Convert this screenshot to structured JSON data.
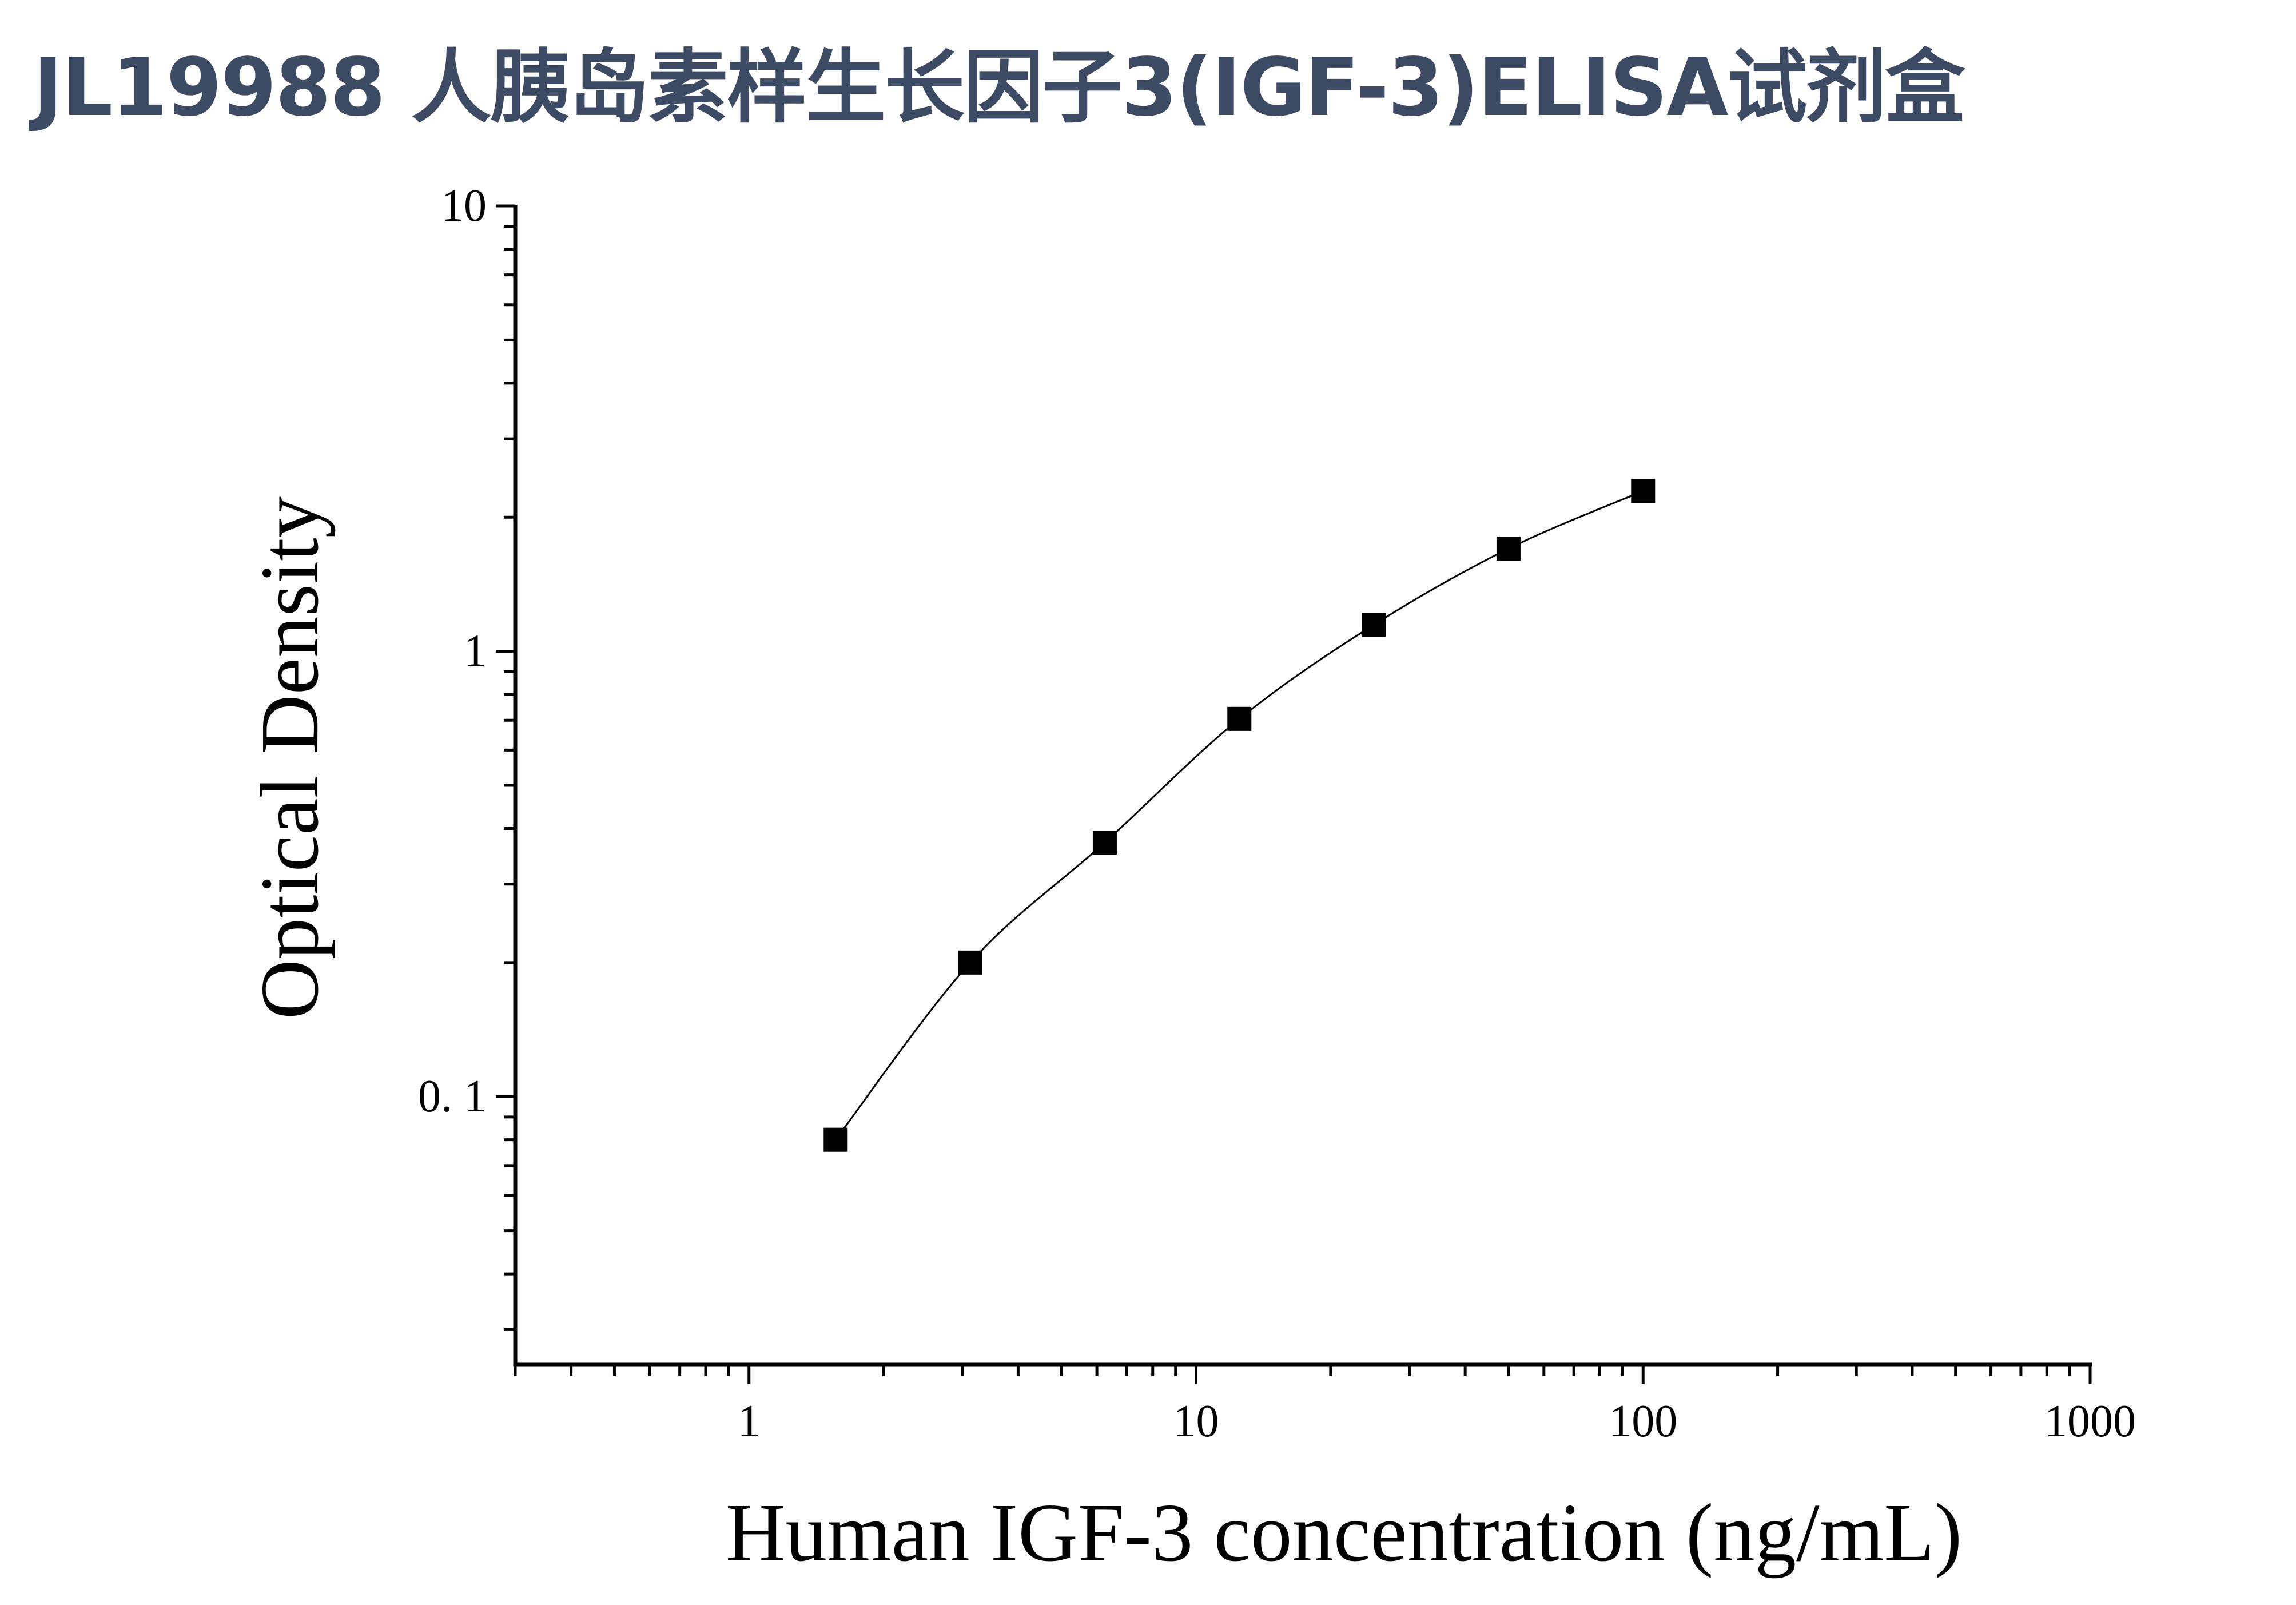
{
  "title": "JL19988 人胰岛素样生长因子3(IGF-3)ELISA试剂盒",
  "chart_data": {
    "type": "scatter",
    "title": "JL19988 人胰岛素样生长因子3(IGF-3)ELISA试剂盒",
    "xlabel": "Human IGF-3 concentration (ng/mL)",
    "ylabel": "Optical Density",
    "xscale": "log",
    "yscale": "log",
    "xlim": [
      0.3,
      1000
    ],
    "ylim": [
      0.025,
      10
    ],
    "xticks": [
      {
        "v": 1,
        "label": "1"
      },
      {
        "v": 10,
        "label": "10"
      },
      {
        "v": 100,
        "label": "100"
      },
      {
        "v": 1000,
        "label": "1000"
      }
    ],
    "yticks": [
      {
        "v": 0.1,
        "label": "0. 1"
      },
      {
        "v": 1,
        "label": "1"
      },
      {
        "v": 10,
        "label": "10"
      }
    ],
    "grid": false,
    "marker": "square",
    "fit_curve": true,
    "color": "#000000",
    "series": [
      {
        "x": [
          1.5625,
          3.125,
          6.25,
          12.5,
          25,
          50,
          100
        ],
        "y": [
          0.08,
          0.2,
          0.372,
          0.705,
          1.147,
          1.7,
          2.29
        ]
      }
    ]
  }
}
